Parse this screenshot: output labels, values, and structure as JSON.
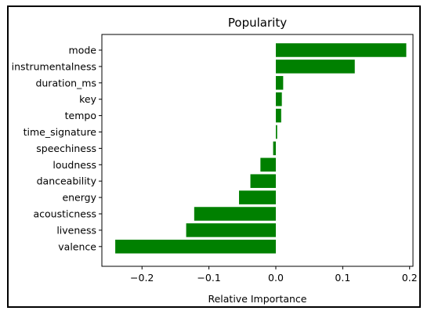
{
  "chart_data": {
    "type": "bar",
    "orientation": "horizontal",
    "title": "Popularity",
    "xlabel": "Relative Importance",
    "ylabel": "",
    "xlim": [
      -0.26,
      0.205
    ],
    "xticks": [
      -0.2,
      -0.1,
      0.0,
      0.1,
      0.2
    ],
    "xtick_labels": [
      "−0.2",
      "−0.1",
      "0.0",
      "0.1",
      "0.2"
    ],
    "bar_color": "#008000",
    "grid": false,
    "categories": [
      "mode",
      "instrumentalness",
      "duration_ms",
      "key",
      "tempo",
      "time_signature",
      "speechiness",
      "loudness",
      "danceability",
      "energy",
      "acousticness",
      "liveness",
      "valence"
    ],
    "values": [
      0.195,
      0.118,
      0.011,
      0.009,
      0.008,
      0.002,
      -0.004,
      -0.023,
      -0.038,
      -0.055,
      -0.122,
      -0.134,
      -0.24
    ]
  }
}
